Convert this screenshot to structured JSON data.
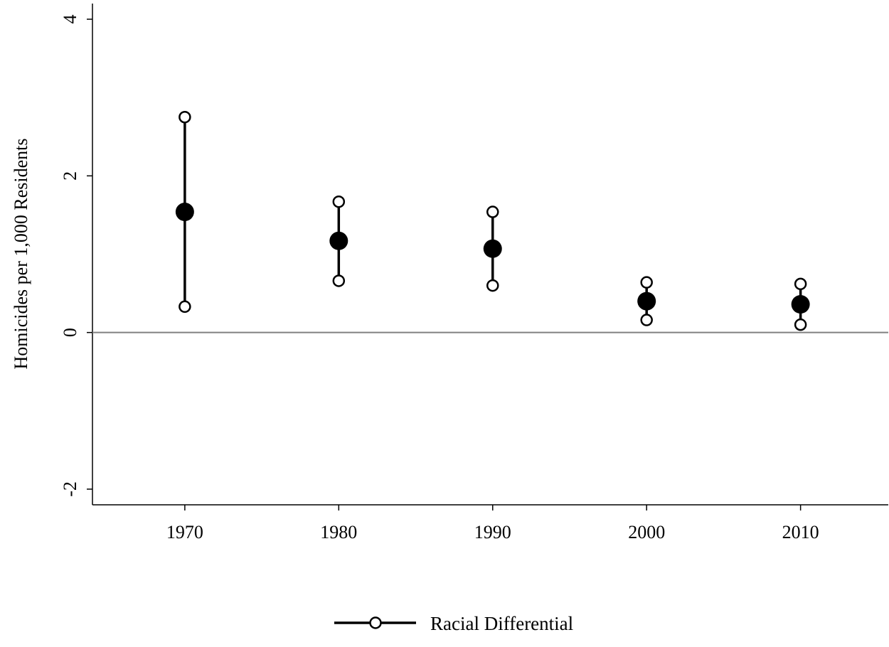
{
  "chart_data": {
    "type": "scatter",
    "title": "",
    "xlabel": "",
    "ylabel": "Homicides per 1,000 Residents",
    "x_ticks": [
      "1970",
      "1980",
      "1990",
      "2000",
      "2010"
    ],
    "y_ticks": [
      "-2",
      "0",
      "2",
      "4"
    ],
    "xlim": [
      1964,
      2015.7
    ],
    "ylim": [
      -2.2,
      4.2
    ],
    "reference_line": 0,
    "grid": false,
    "legend_position": "bottom-center",
    "series": [
      {
        "name": "Racial Differential",
        "points": [
          {
            "x": 1970,
            "y": 1.54,
            "low": 0.33,
            "high": 2.75
          },
          {
            "x": 1980,
            "y": 1.17,
            "low": 0.66,
            "high": 1.67
          },
          {
            "x": 1990,
            "y": 1.07,
            "low": 0.6,
            "high": 1.54
          },
          {
            "x": 2000,
            "y": 0.4,
            "low": 0.16,
            "high": 0.64
          },
          {
            "x": 2010,
            "y": 0.36,
            "low": 0.1,
            "high": 0.62
          }
        ]
      }
    ],
    "colors": {
      "marker": "#000000",
      "zero_line": "#808080"
    }
  }
}
